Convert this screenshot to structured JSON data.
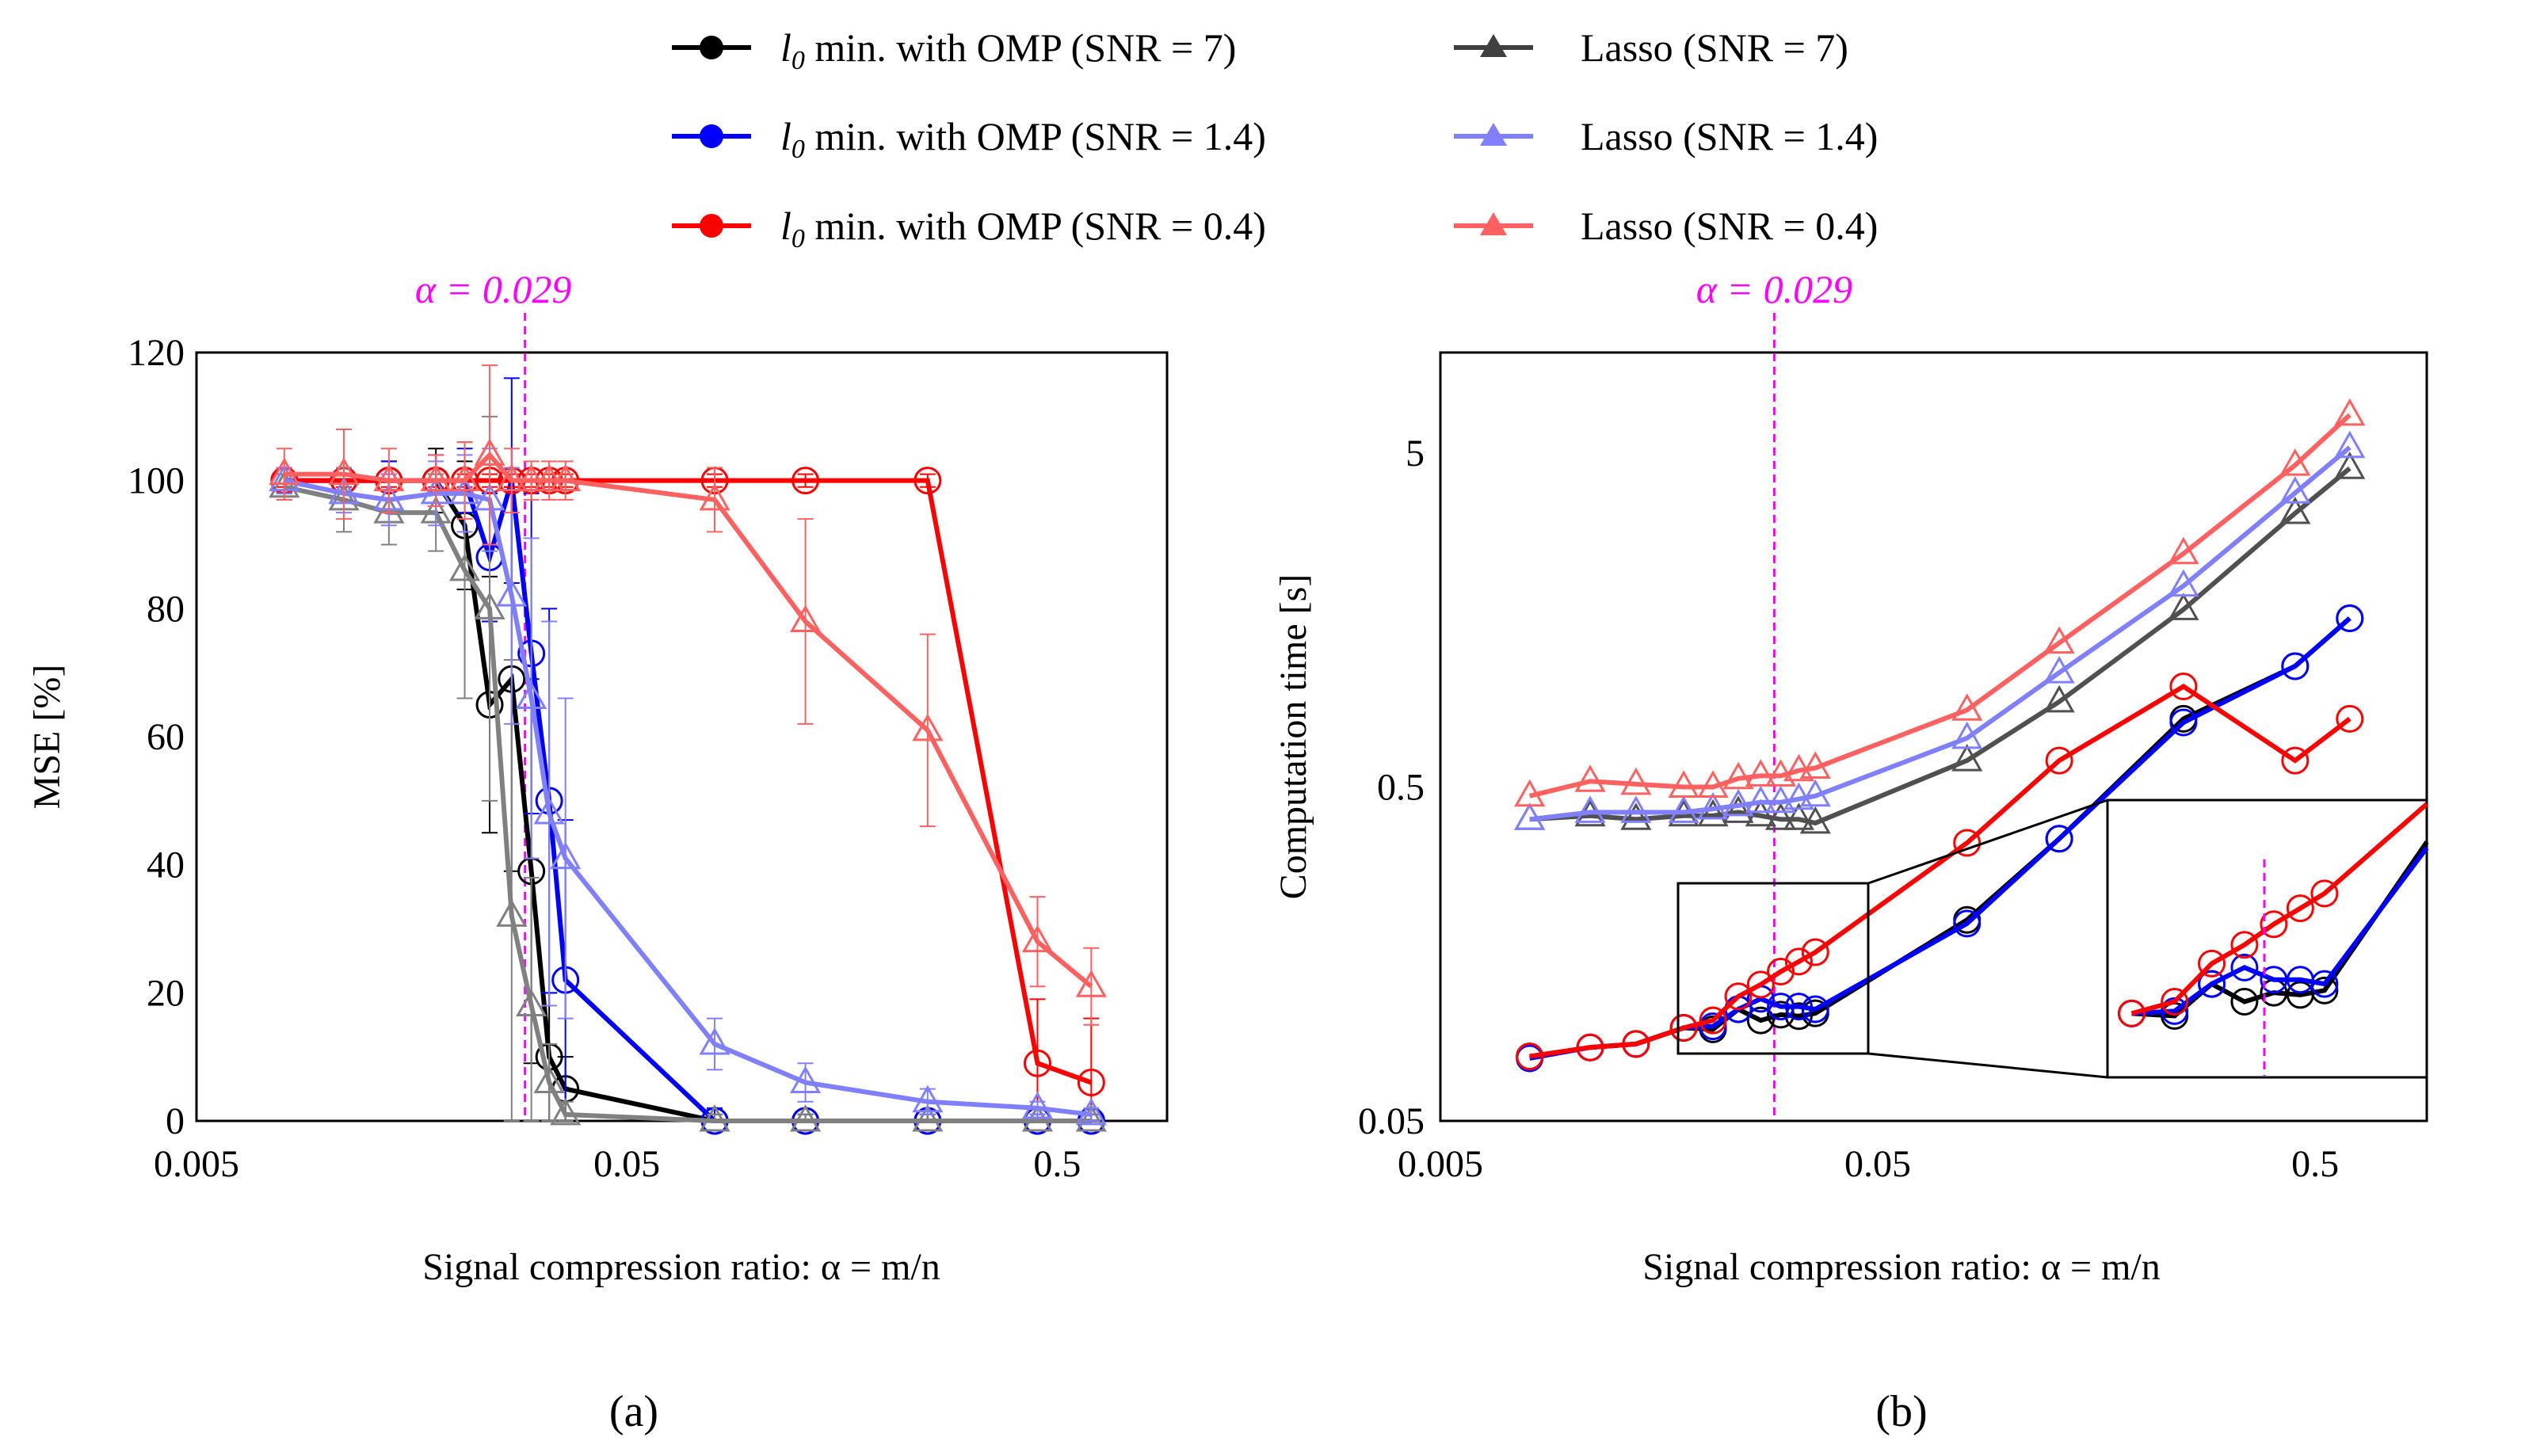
{
  "legend": {
    "items": [
      {
        "prefix": "l",
        "sub": "0",
        "text": " min. with OMP (SNR = 7)",
        "color": "#000000",
        "marker": "circle"
      },
      {
        "prefix": "l",
        "sub": "0",
        "text": " min. with OMP (SNR = 1.4)",
        "color": "#0000ff",
        "marker": "circle"
      },
      {
        "prefix": "l",
        "sub": "0",
        "text": " min. with OMP (SNR = 0.4)",
        "color": "#ff0000",
        "marker": "circle"
      },
      {
        "prefix": "",
        "sub": "",
        "text": "Lasso  (SNR = 7)",
        "color": "#404040",
        "marker": "triangle"
      },
      {
        "prefix": "",
        "sub": "",
        "text": "Lasso (SNR = 1.4)",
        "color": "#8080ff",
        "marker": "triangle"
      },
      {
        "prefix": "",
        "sub": "",
        "text": "Lasso (SNR = 0.4)",
        "color": "#ff6060",
        "marker": "triangle"
      }
    ]
  },
  "panel_a": {
    "sublabel": "(a)",
    "alpha_label": "α = 0.029",
    "xlabel": "Signal compression ratio: α = m/n",
    "ylabel": "MSE [%]",
    "xticks": [
      "0.005",
      "0.05",
      "0.5"
    ],
    "yticks": [
      "0",
      "20",
      "40",
      "60",
      "80",
      "100",
      "120"
    ]
  },
  "panel_b": {
    "sublabel": "(b)",
    "alpha_label": "α = 0.029",
    "xlabel": "Signal compression ratio: α = m/n",
    "ylabel": "Computation time [s]",
    "xticks": [
      "0.005",
      "0.05",
      "0.5"
    ],
    "yticks": [
      "0.05",
      "0.5",
      "5"
    ]
  },
  "chart_data": [
    {
      "type": "line",
      "title": "(a)",
      "xlabel": "Signal compression ratio: α = m/n",
      "ylabel": "MSE [%]",
      "xscale": "log",
      "xlim": [
        0.005,
        0.9
      ],
      "ylim": [
        0,
        120
      ],
      "threshold_line": {
        "x": 0.029,
        "label": "α = 0.029",
        "color": "#ff00ff"
      },
      "series": [
        {
          "name": "l0 min. with OMP (SNR = 7)",
          "color": "#000000",
          "marker": "circle",
          "x": [
            0.008,
            0.011,
            0.014,
            0.018,
            0.021,
            0.024,
            0.027,
            0.03,
            0.033,
            0.036,
            0.08,
            0.13,
            0.25,
            0.45,
            0.6
          ],
          "y": [
            100,
            100,
            100,
            100,
            93,
            65,
            69,
            39,
            10,
            5,
            0,
            0,
            0,
            0,
            0
          ],
          "err": [
            2,
            2,
            3,
            5,
            10,
            20,
            30,
            30,
            10,
            5,
            1,
            1,
            1,
            1,
            1
          ]
        },
        {
          "name": "l0 min. with OMP (SNR = 1.4)",
          "color": "#0000ff",
          "marker": "circle",
          "x": [
            0.008,
            0.011,
            0.014,
            0.018,
            0.021,
            0.024,
            0.027,
            0.03,
            0.033,
            0.036,
            0.08,
            0.13,
            0.25,
            0.45,
            0.6
          ],
          "y": [
            100,
            100,
            100,
            100,
            100,
            88,
            100,
            73,
            50,
            22,
            0,
            0,
            0,
            0,
            0
          ],
          "err": [
            2,
            2,
            3,
            4,
            5,
            10,
            16,
            25,
            30,
            25,
            2,
            1,
            1,
            1,
            1
          ]
        },
        {
          "name": "l0 min. with OMP (SNR = 0.4)",
          "color": "#ff0000",
          "marker": "circle",
          "x": [
            0.008,
            0.011,
            0.014,
            0.018,
            0.021,
            0.024,
            0.027,
            0.03,
            0.033,
            0.036,
            0.08,
            0.13,
            0.25,
            0.45,
            0.6
          ],
          "y": [
            100,
            100,
            100,
            100,
            100,
            100,
            100,
            100,
            100,
            100,
            100,
            100,
            100,
            9,
            6
          ],
          "err": [
            1,
            1,
            1,
            1,
            1,
            1,
            1,
            1,
            1,
            1,
            1,
            1,
            1,
            10,
            10
          ]
        },
        {
          "name": "Lasso (SNR = 7)",
          "color": "#808080",
          "marker": "triangle",
          "x": [
            0.008,
            0.011,
            0.014,
            0.018,
            0.021,
            0.024,
            0.027,
            0.03,
            0.033,
            0.036,
            0.08,
            0.13,
            0.25,
            0.45,
            0.6
          ],
          "y": [
            99,
            97,
            95,
            95,
            86,
            80,
            32,
            18,
            6,
            1,
            0,
            0,
            0,
            0,
            0
          ],
          "err": [
            2,
            5,
            5,
            6,
            20,
            30,
            40,
            20,
            6,
            2,
            1,
            1,
            1,
            1,
            1
          ]
        },
        {
          "name": "Lasso (SNR = 1.4)",
          "color": "#8080ff",
          "marker": "triangle",
          "x": [
            0.008,
            0.011,
            0.014,
            0.018,
            0.021,
            0.024,
            0.027,
            0.03,
            0.033,
            0.036,
            0.08,
            0.13,
            0.25,
            0.45,
            0.6
          ],
          "y": [
            100,
            98,
            97,
            98,
            98,
            97,
            82,
            66,
            48,
            41,
            12,
            6,
            3,
            2,
            1
          ],
          "err": [
            2,
            3,
            4,
            5,
            6,
            8,
            20,
            25,
            30,
            25,
            4,
            3,
            2,
            1,
            1
          ]
        },
        {
          "name": "Lasso (SNR = 0.4)",
          "color": "#ff6060",
          "marker": "triangle",
          "x": [
            0.008,
            0.011,
            0.014,
            0.018,
            0.021,
            0.024,
            0.027,
            0.03,
            0.033,
            0.036,
            0.08,
            0.13,
            0.25,
            0.45,
            0.6
          ],
          "y": [
            101,
            101,
            100,
            100,
            100,
            104,
            100,
            100,
            100,
            100,
            97,
            78,
            61,
            28,
            21
          ],
          "err": [
            4,
            7,
            5,
            4,
            6,
            14,
            5,
            3,
            3,
            3,
            5,
            16,
            15,
            7,
            6
          ]
        }
      ]
    },
    {
      "type": "line",
      "title": "(b)",
      "xlabel": "Signal compression ratio: α = m/n",
      "ylabel": "Computation time [s]",
      "xscale": "log",
      "yscale": "log",
      "xlim": [
        0.005,
        0.9
      ],
      "ylim": [
        0.05,
        10
      ],
      "threshold_line": {
        "x": 0.029,
        "label": "α = 0.029",
        "color": "#ff00ff"
      },
      "series": [
        {
          "name": "l0 min. with OMP (SNR = 7)",
          "color": "#000000",
          "marker": "circle",
          "x": [
            0.008,
            0.011,
            0.014,
            0.018,
            0.021,
            0.024,
            0.027,
            0.03,
            0.033,
            0.036,
            0.08,
            0.13,
            0.25,
            0.45,
            0.6
          ],
          "y": [
            0.078,
            0.083,
            0.085,
            0.095,
            0.094,
            0.108,
            0.1,
            0.104,
            0.103,
            0.105,
            0.2,
            0.35,
            0.8,
            1.15,
            1.6
          ]
        },
        {
          "name": "l0 min. with OMP (SNR = 1.4)",
          "color": "#0000ff",
          "marker": "circle",
          "x": [
            0.008,
            0.011,
            0.014,
            0.018,
            0.021,
            0.024,
            0.027,
            0.03,
            0.033,
            0.036,
            0.08,
            0.13,
            0.25,
            0.45,
            0.6
          ],
          "y": [
            0.077,
            0.083,
            0.085,
            0.095,
            0.096,
            0.108,
            0.116,
            0.11,
            0.11,
            0.108,
            0.195,
            0.35,
            0.78,
            1.15,
            1.6
          ]
        },
        {
          "name": "l0 min. with OMP (SNR = 0.4)",
          "color": "#ff0000",
          "marker": "circle",
          "x": [
            0.008,
            0.011,
            0.014,
            0.018,
            0.021,
            0.024,
            0.027,
            0.03,
            0.033,
            0.036,
            0.08,
            0.13,
            0.25,
            0.45,
            0.6
          ],
          "y": [
            0.078,
            0.083,
            0.085,
            0.095,
            0.1,
            0.118,
            0.128,
            0.14,
            0.15,
            0.16,
            0.34,
            0.6,
            1.0,
            0.6,
            0.8
          ]
        },
        {
          "name": "Lasso (SNR = 7)",
          "color": "#505050",
          "marker": "triangle",
          "x": [
            0.008,
            0.011,
            0.014,
            0.018,
            0.021,
            0.024,
            0.027,
            0.03,
            0.033,
            0.036,
            0.08,
            0.13,
            0.25,
            0.45,
            0.6
          ],
          "y": [
            0.4,
            0.41,
            0.4,
            0.41,
            0.41,
            0.42,
            0.41,
            0.4,
            0.4,
            0.39,
            0.6,
            0.9,
            1.7,
            3.3,
            4.5
          ]
        },
        {
          "name": "Lasso (SNR = 1.4)",
          "color": "#8080ff",
          "marker": "triangle",
          "x": [
            0.008,
            0.011,
            0.014,
            0.018,
            0.021,
            0.024,
            0.027,
            0.03,
            0.033,
            0.036,
            0.08,
            0.13,
            0.25,
            0.45,
            0.6
          ],
          "y": [
            0.4,
            0.42,
            0.42,
            0.42,
            0.43,
            0.44,
            0.45,
            0.45,
            0.46,
            0.47,
            0.7,
            1.1,
            2.0,
            3.8,
            5.2
          ]
        },
        {
          "name": "Lasso (SNR = 0.4)",
          "color": "#ff6060",
          "marker": "triangle",
          "x": [
            0.008,
            0.011,
            0.014,
            0.018,
            0.021,
            0.024,
            0.027,
            0.03,
            0.033,
            0.036,
            0.08,
            0.13,
            0.25,
            0.45,
            0.6
          ],
          "y": [
            0.47,
            0.52,
            0.51,
            0.5,
            0.5,
            0.53,
            0.54,
            0.54,
            0.56,
            0.57,
            0.85,
            1.35,
            2.5,
            4.6,
            6.5
          ]
        }
      ]
    }
  ]
}
